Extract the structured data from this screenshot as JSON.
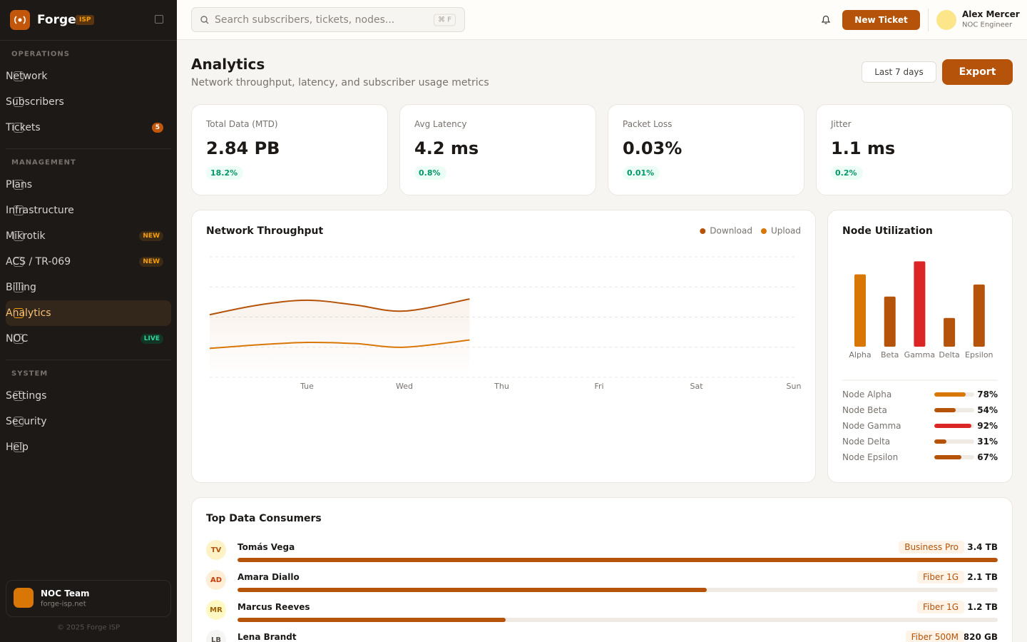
{
  "sidebar": {
    "brand": "Forge",
    "brand_badge": "ISP",
    "sections": [
      {
        "title": "OPERATIONS",
        "items": [
          {
            "label": "Network"
          },
          {
            "label": "Subscribers"
          },
          {
            "label": "Tickets",
            "badge": "5",
            "badge_color": "#ffffff",
            "badge_bg": "#c2570c"
          }
        ]
      },
      {
        "title": "MANAGEMENT",
        "items": [
          {
            "label": "Plans"
          },
          {
            "label": "Infrastructure"
          },
          {
            "label": "Mikrotik",
            "badge": "NEW",
            "badge_color": "#f59e0b",
            "badge_bg": "#3b2a16"
          },
          {
            "label": "ACS / TR-069",
            "badge": "NEW",
            "badge_color": "#f59e0b",
            "badge_bg": "#3b2a16"
          },
          {
            "label": "Billing"
          },
          {
            "label": "Analytics",
            "active": true
          },
          {
            "label": "NOC",
            "badge": "LIVE",
            "badge_color": "#34d399",
            "badge_bg": "#123527"
          }
        ]
      },
      {
        "title": "SYSTEM",
        "items": [
          {
            "label": "Settings"
          },
          {
            "label": "Security"
          },
          {
            "label": "Help"
          }
        ]
      }
    ],
    "team": {
      "name": "NOC Team",
      "domain": "forge-isp.net"
    },
    "footer": "© 2025 Forge ISP"
  },
  "topbar": {
    "search_placeholder": "Search subscribers, tickets, nodes...",
    "shortcut": "⌘ F",
    "new_ticket": "New Ticket",
    "user_name": "Alex Mercer",
    "user_role": "NOC Engineer"
  },
  "header": {
    "title": "Analytics",
    "subtitle": "Network throughput, latency, and subscriber usage metrics",
    "range": "Last 7 days",
    "export": "Export"
  },
  "kpis": [
    {
      "label": "Total Data (MTD)",
      "value": "2.84 PB",
      "change": "18.2%"
    },
    {
      "label": "Avg Latency",
      "value": "4.2 ms",
      "change": "0.8%"
    },
    {
      "label": "Packet Loss",
      "value": "0.03%",
      "change": "0.01%"
    },
    {
      "label": "Jitter",
      "value": "1.1 ms",
      "change": "0.2%"
    }
  ],
  "chart_data": [
    {
      "type": "line",
      "title": "Network Throughput",
      "x": [
        0,
        0.5,
        1,
        1.5,
        2,
        2.67
      ],
      "xlim": [
        0,
        6
      ],
      "xticks": [
        {
          "value": 1,
          "label": "Tue"
        },
        {
          "value": 2,
          "label": "Wed"
        },
        {
          "value": 3,
          "label": "Thu"
        },
        {
          "value": 4,
          "label": "Fri"
        },
        {
          "value": 5,
          "label": "Sat"
        },
        {
          "value": 6,
          "label": "Sun"
        }
      ],
      "ylim": [
        0,
        100
      ],
      "yticks": [
        0,
        25,
        50,
        75,
        100
      ],
      "grid": true,
      "series": [
        {
          "name": "Download",
          "color": "#b45309",
          "values": [
            52,
            60,
            64,
            60,
            55,
            65
          ]
        },
        {
          "name": "Upload",
          "color": "#d97706",
          "values": [
            24,
            27,
            29,
            28,
            25,
            31
          ]
        }
      ]
    },
    {
      "type": "bar",
      "title": "Node Utilization",
      "categories": [
        "Alpha",
        "Beta",
        "Gamma",
        "Delta",
        "Epsilon"
      ],
      "values": [
        78,
        54,
        92,
        31,
        67
      ],
      "value_labels": [
        "78%",
        "54%",
        "92%",
        "31%",
        "67%"
      ],
      "colors": [
        "#d97706",
        "#b45309",
        "#dc2626",
        "#b45309",
        "#b45309"
      ],
      "ylim": [
        0,
        100
      ]
    }
  ],
  "node_list": [
    "Node Alpha",
    "Node Beta",
    "Node Gamma",
    "Node Delta",
    "Node Epsilon"
  ],
  "consumers": {
    "title": "Top Data Consumers",
    "rows": [
      {
        "initials": "TV",
        "name": "Tomás Vega",
        "plan": "Business Pro",
        "usage": 3.4,
        "usage_label": "3.4 TB",
        "color": "#b45309",
        "bg": "#fef3c7"
      },
      {
        "initials": "AD",
        "name": "Amara Diallo",
        "plan": "Fiber 1G",
        "usage": 2.1,
        "usage_label": "2.1 TB",
        "color": "#c2410c",
        "bg": "#ffedd5"
      },
      {
        "initials": "MR",
        "name": "Marcus Reeves",
        "plan": "Fiber 1G",
        "usage": 1.2,
        "usage_label": "1.2 TB",
        "color": "#a16207",
        "bg": "#fef9c3"
      },
      {
        "initials": "LB",
        "name": "Lena Brandt",
        "plan": "Fiber 500M",
        "usage": 0.82,
        "usage_label": "820 GB",
        "color": "#57534e",
        "bg": "#f5f5f4"
      }
    ]
  }
}
